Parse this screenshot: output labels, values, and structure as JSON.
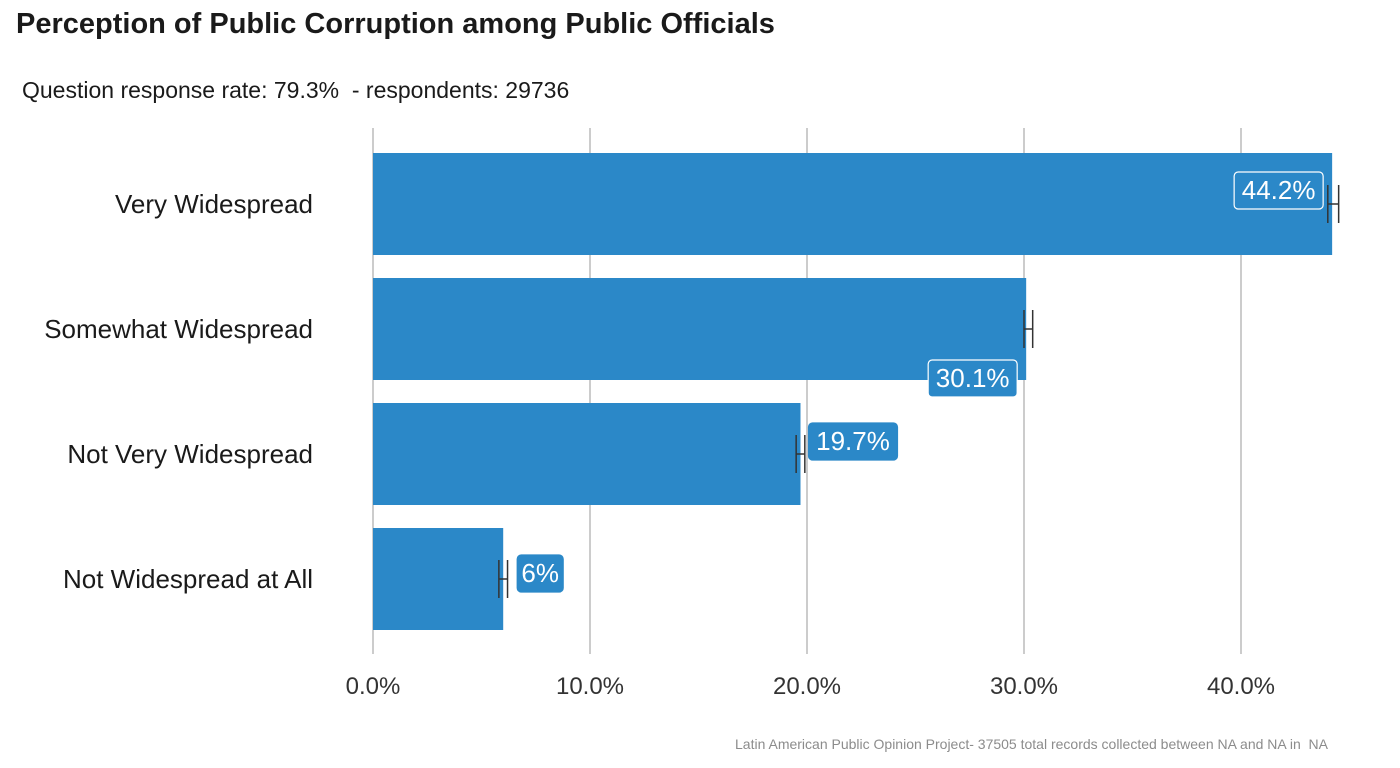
{
  "title": "Perception of Public Corruption among Public Officials",
  "subtitle": "Question response rate: 79.3%  - respondents: 29736",
  "caption": "Latin American Public Opinion Project- 37505 total records collected between NA and NA in  NA",
  "chart_data": {
    "type": "bar",
    "orientation": "horizontal",
    "categories": [
      "Very Widespread",
      "Somewhat Widespread",
      "Not Very Widespread",
      "Not Widespread at All"
    ],
    "values": [
      44.2,
      30.1,
      19.7,
      6.0
    ],
    "data_labels": [
      "44.2%",
      "30.1%",
      "19.7%",
      "6%"
    ],
    "error_bars": [
      [
        44.0,
        44.5
      ],
      [
        30.0,
        30.4
      ],
      [
        19.5,
        19.9
      ],
      [
        5.8,
        6.2
      ]
    ],
    "x_ticks": [
      0,
      10,
      20,
      30,
      40
    ],
    "x_tick_labels": [
      "0.0%",
      "10.0%",
      "20.0%",
      "30.0%",
      "40.0%"
    ],
    "xlim": [
      0,
      44.5
    ],
    "grid": "vertical",
    "colors": {
      "bar": "#2b88c8",
      "grid": "#cccccc",
      "errorbar": "#333333",
      "label_text": "#ffffff"
    }
  }
}
